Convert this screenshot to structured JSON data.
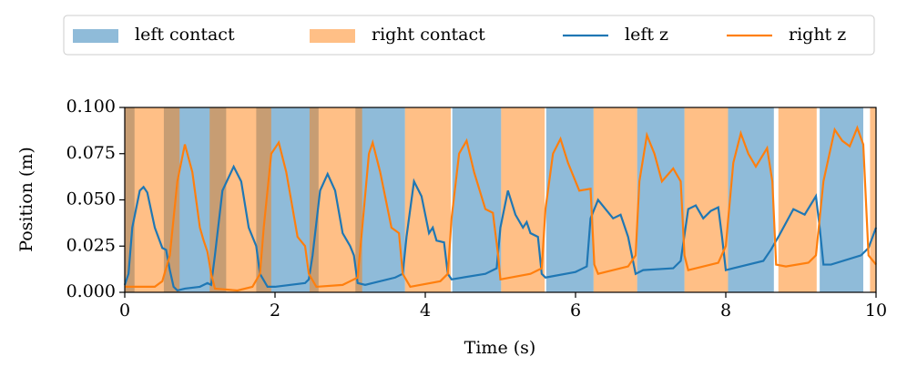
{
  "chart_data": {
    "type": "line",
    "xlabel": "Time (s)",
    "ylabel": "Position (m)",
    "xlim": [
      0,
      10
    ],
    "xticks": [
      0,
      2,
      4,
      6,
      8,
      10
    ],
    "ylim": [
      0,
      0.1
    ],
    "yticks": [
      {
        "value": 0,
        "label": "0.000"
      },
      {
        "value": 0.025,
        "label": "0.025"
      },
      {
        "value": 0.05,
        "label": "0.050"
      },
      {
        "value": 0.075,
        "label": "0.075"
      },
      {
        "value": 0.1,
        "label": "0.100"
      }
    ],
    "legend": "top",
    "series": [
      {
        "name": "left contact",
        "color": "#1f77b4",
        "spans": [
          [
            0,
            0.13
          ],
          [
            0.52,
            1.35
          ],
          [
            1.75,
            2.58
          ],
          [
            3.07,
            3.73
          ],
          [
            4.36,
            5.01
          ],
          [
            5.61,
            6.24
          ],
          [
            6.82,
            7.45
          ],
          [
            8.03,
            8.64
          ],
          [
            9.25,
            9.83
          ]
        ]
      },
      {
        "name": "right contact",
        "color": "#ff7f0e",
        "spans": [
          [
            0,
            0.73
          ],
          [
            1.13,
            1.95
          ],
          [
            2.46,
            3.16
          ],
          [
            3.73,
            4.34
          ],
          [
            5.01,
            5.59
          ],
          [
            6.24,
            6.82
          ],
          [
            7.45,
            8.03
          ],
          [
            8.7,
            9.21
          ],
          [
            9.92,
            10
          ]
        ]
      },
      {
        "name": "left z",
        "color": "#1f77b4",
        "x": [
          0,
          0.05,
          0.1,
          0.2,
          0.25,
          0.3,
          0.4,
          0.5,
          0.55,
          0.6,
          0.65,
          0.7,
          0.8,
          1.0,
          1.1,
          1.15,
          1.2,
          1.3,
          1.45,
          1.55,
          1.65,
          1.75,
          1.8,
          1.9,
          2.0,
          2.4,
          2.45,
          2.5,
          2.6,
          2.7,
          2.8,
          2.9,
          3.0,
          3.05,
          3.1,
          3.2,
          3.6,
          3.7,
          3.75,
          3.85,
          3.95,
          4.05,
          4.1,
          4.15,
          4.25,
          4.3,
          4.35,
          4.8,
          4.95,
          5.0,
          5.1,
          5.2,
          5.3,
          5.35,
          5.4,
          5.5,
          5.55,
          5.6,
          6.0,
          6.15,
          6.2,
          6.3,
          6.4,
          6.5,
          6.6,
          6.7,
          6.8,
          6.9,
          7.3,
          7.4,
          7.5,
          7.6,
          7.7,
          7.8,
          7.9,
          7.95,
          8.0,
          8.1,
          8.5,
          8.6,
          8.7,
          8.9,
          9.05,
          9.2,
          9.25,
          9.3,
          9.4,
          9.8,
          9.9,
          10.0
        ],
        "values": [
          0.004,
          0.01,
          0.035,
          0.055,
          0.057,
          0.054,
          0.035,
          0.024,
          0.023,
          0.012,
          0.003,
          0.001,
          0.002,
          0.003,
          0.005,
          0.004,
          0.02,
          0.055,
          0.068,
          0.06,
          0.035,
          0.025,
          0.01,
          0.003,
          0.003,
          0.005,
          0.007,
          0.02,
          0.055,
          0.064,
          0.055,
          0.032,
          0.025,
          0.02,
          0.005,
          0.004,
          0.008,
          0.01,
          0.03,
          0.06,
          0.052,
          0.032,
          0.035,
          0.028,
          0.027,
          0.01,
          0.007,
          0.01,
          0.013,
          0.035,
          0.055,
          0.042,
          0.035,
          0.038,
          0.032,
          0.03,
          0.01,
          0.008,
          0.011,
          0.014,
          0.04,
          0.05,
          0.045,
          0.04,
          0.042,
          0.03,
          0.01,
          0.012,
          0.013,
          0.017,
          0.045,
          0.047,
          0.04,
          0.044,
          0.046,
          0.03,
          0.012,
          0.013,
          0.017,
          0.023,
          0.03,
          0.045,
          0.042,
          0.052,
          0.035,
          0.015,
          0.015,
          0.02,
          0.024,
          0.035
        ]
      },
      {
        "name": "right z",
        "color": "#ff7f0e",
        "x": [
          0,
          0.4,
          0.5,
          0.6,
          0.7,
          0.8,
          0.9,
          1.0,
          1.05,
          1.1,
          1.15,
          1.2,
          1.5,
          1.7,
          1.8,
          1.85,
          1.95,
          2.05,
          2.15,
          2.3,
          2.4,
          2.45,
          2.55,
          2.9,
          3.1,
          3.15,
          3.25,
          3.3,
          3.4,
          3.55,
          3.65,
          3.7,
          3.8,
          4.2,
          4.3,
          4.35,
          4.45,
          4.55,
          4.65,
          4.8,
          4.9,
          4.97,
          5.0,
          5.4,
          5.55,
          5.6,
          5.7,
          5.8,
          5.9,
          6.05,
          6.2,
          6.25,
          6.3,
          6.7,
          6.8,
          6.85,
          6.95,
          7.05,
          7.15,
          7.3,
          7.4,
          7.45,
          7.5,
          7.9,
          8.0,
          8.1,
          8.2,
          8.3,
          8.4,
          8.55,
          8.62,
          8.67,
          8.8,
          9.1,
          9.2,
          9.3,
          9.45,
          9.55,
          9.65,
          9.75,
          9.83,
          9.9,
          10.0
        ],
        "values": [
          0.003,
          0.003,
          0.006,
          0.02,
          0.06,
          0.08,
          0.065,
          0.035,
          0.028,
          0.022,
          0.01,
          0.002,
          0.001,
          0.003,
          0.01,
          0.035,
          0.075,
          0.081,
          0.065,
          0.03,
          0.025,
          0.01,
          0.003,
          0.004,
          0.008,
          0.03,
          0.075,
          0.081,
          0.065,
          0.035,
          0.032,
          0.01,
          0.003,
          0.006,
          0.01,
          0.04,
          0.075,
          0.082,
          0.065,
          0.045,
          0.043,
          0.02,
          0.007,
          0.01,
          0.013,
          0.045,
          0.075,
          0.083,
          0.07,
          0.055,
          0.056,
          0.015,
          0.01,
          0.014,
          0.02,
          0.06,
          0.085,
          0.075,
          0.06,
          0.067,
          0.06,
          0.02,
          0.012,
          0.016,
          0.025,
          0.07,
          0.086,
          0.075,
          0.068,
          0.078,
          0.06,
          0.015,
          0.014,
          0.016,
          0.02,
          0.06,
          0.088,
          0.082,
          0.079,
          0.089,
          0.08,
          0.02,
          0.015
        ]
      }
    ]
  }
}
